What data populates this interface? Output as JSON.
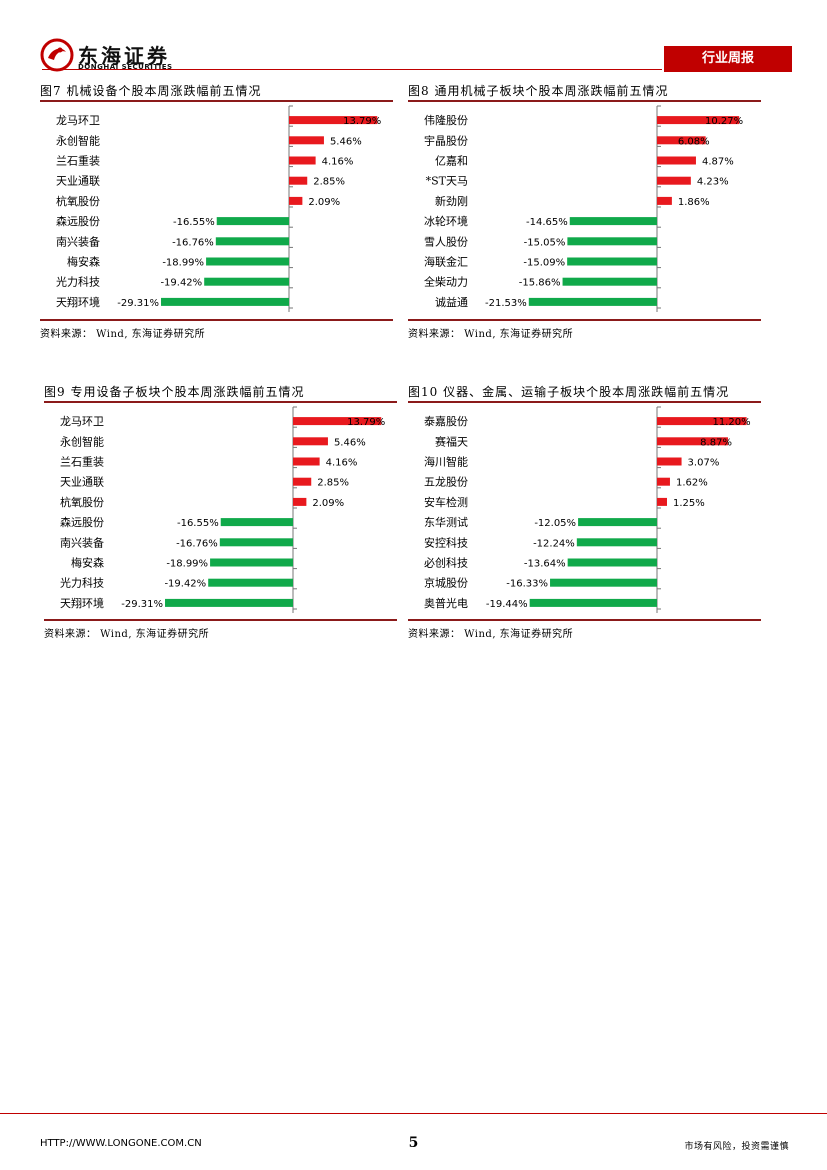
{
  "header": {
    "logo_cn": "东海证券",
    "logo_en": "DONGHAI SECURITIES",
    "report_type": "行业周报"
  },
  "figures": [
    {
      "title": "图7 机械设备个股本周涨跌幅前五情况",
      "source": "资料来源： Wind, 东海证券研究所"
    },
    {
      "title": "图8 通用机械子板块个股本周涨跌幅前五情况",
      "source": "资料来源： Wind, 东海证券研究所"
    },
    {
      "title": "图9 专用设备子板块个股本周涨跌幅前五情况",
      "source": "资料来源： Wind, 东海证券研究所"
    },
    {
      "title": "图10 仪器、金属、运输子板块个股本周涨跌幅前五情况",
      "source": "资料来源： Wind, 东海证券研究所"
    }
  ],
  "chart_data": [
    {
      "type": "bar",
      "orientation": "horizontal",
      "categories": [
        "龙马环卫",
        "永创智能",
        "兰石重装",
        "天业通联",
        "杭氧股份",
        "森远股份",
        "南兴装备",
        "梅安森",
        "光力科技",
        "天翔环境"
      ],
      "values": [
        13.79,
        5.46,
        4.16,
        2.85,
        2.09,
        -16.55,
        -16.76,
        -18.99,
        -19.42,
        -29.31
      ],
      "labels": [
        "13.79%",
        "5.46%",
        "4.16%",
        "2.85%",
        "2.09%",
        "-16.55%",
        "-16.76%",
        "-18.99%",
        "-19.42%",
        "-29.31%"
      ],
      "colors": {
        "positive": "#e8191e",
        "negative": "#10a94a"
      },
      "xlim": [
        -30,
        15
      ],
      "grid": false,
      "legend": "none"
    },
    {
      "type": "bar",
      "orientation": "horizontal",
      "categories": [
        "伟隆股份",
        "宇晶股份",
        "亿嘉和",
        "*ST天马",
        "新劲刚",
        "冰轮环境",
        "雪人股份",
        "海联金汇",
        "全柴动力",
        "诚益通"
      ],
      "values": [
        10.27,
        6.08,
        4.87,
        4.23,
        1.86,
        -14.65,
        -15.05,
        -15.09,
        -15.86,
        -21.53
      ],
      "labels": [
        "10.27%",
        "6.08%",
        "4.87%",
        "4.23%",
        "1.86%",
        "-14.65%",
        "-15.05%",
        "-15.09%",
        "-15.86%",
        "-21.53%"
      ],
      "colors": {
        "positive": "#e8191e",
        "negative": "#10a94a"
      },
      "xlim": [
        -22,
        12
      ],
      "grid": false,
      "legend": "none"
    },
    {
      "type": "bar",
      "orientation": "horizontal",
      "categories": [
        "龙马环卫",
        "永创智能",
        "兰石重装",
        "天业通联",
        "杭氧股份",
        "森远股份",
        "南兴装备",
        "梅安森",
        "光力科技",
        "天翔环境"
      ],
      "values": [
        13.79,
        5.46,
        4.16,
        2.85,
        2.09,
        -16.55,
        -16.76,
        -18.99,
        -19.42,
        -29.31
      ],
      "labels": [
        "13.79%",
        "5.46%",
        "4.16%",
        "2.85%",
        "2.09%",
        "-16.55%",
        "-16.76%",
        "-18.99%",
        "-19.42%",
        "-29.31%"
      ],
      "colors": {
        "positive": "#e8191e",
        "negative": "#10a94a"
      },
      "xlim": [
        -30,
        15
      ],
      "grid": false,
      "legend": "none"
    },
    {
      "type": "bar",
      "orientation": "horizontal",
      "categories": [
        "泰嘉股份",
        "赛福天",
        "海川智能",
        "五龙股份",
        "安车检测",
        "东华测试",
        "安控科技",
        "必创科技",
        "京城股份",
        "奥普光电"
      ],
      "values": [
        11.2,
        8.87,
        3.07,
        1.62,
        1.25,
        -12.05,
        -12.24,
        -13.64,
        -16.33,
        -19.44
      ],
      "labels": [
        "11.20%",
        "8.87%",
        "3.07%",
        "1.62%",
        "1.25%",
        "-12.05%",
        "-12.24%",
        "-13.64%",
        "-16.33%",
        "-19.44%"
      ],
      "colors": {
        "positive": "#e8191e",
        "negative": "#10a94a"
      },
      "xlim": [
        -20,
        12
      ],
      "grid": false,
      "legend": "none"
    }
  ],
  "footer": {
    "url": "HTTP://WWW.LONGONE.COM.CN",
    "page": "5",
    "risk": "市场有风险，投资需谨慎"
  }
}
